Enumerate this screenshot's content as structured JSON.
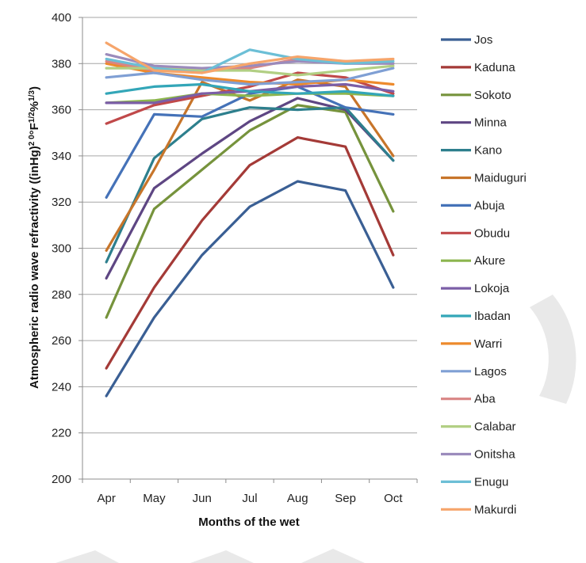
{
  "chart_data": {
    "type": "line",
    "xlabel": "Months of the wet",
    "ylabel": "Atmospheric radio wave refractivity ((inHg)",
    "ylabel_suffix": "°F",
    "ylabel_tail": "%",
    "ylabel_close": ")",
    "ylabel_sup1": "2 0",
    "ylabel_sup2": "1/2",
    "ylabel_sup3": "1/3",
    "categories": [
      "Apr",
      "May",
      "Jun",
      "Jul",
      "Aug",
      "Sep",
      "Oct"
    ],
    "ylim": [
      200,
      400
    ],
    "yticks": [
      200,
      220,
      240,
      260,
      280,
      300,
      320,
      340,
      360,
      380,
      400
    ],
    "grid": true,
    "legend_position": "right",
    "series": [
      {
        "name": "Jos",
        "color": "#3a5f94",
        "values": [
          236,
          270,
          297,
          318,
          329,
          325,
          283
        ]
      },
      {
        "name": "Kaduna",
        "color": "#a43a37",
        "values": [
          248,
          283,
          312,
          336,
          348,
          344,
          297
        ]
      },
      {
        "name": "Sokoto",
        "color": "#76933c",
        "values": [
          270,
          317,
          334,
          351,
          362,
          359,
          316
        ]
      },
      {
        "name": "Minna",
        "color": "#5e4683",
        "values": [
          287,
          326,
          341,
          355,
          365,
          360,
          338
        ]
      },
      {
        "name": "Kano",
        "color": "#2d7f8d",
        "values": [
          294,
          339,
          356,
          361,
          360,
          361,
          338
        ]
      },
      {
        "name": "Maiduguri",
        "color": "#c7752a",
        "values": [
          299,
          334,
          372,
          364,
          373,
          370,
          340
        ]
      },
      {
        "name": "Abuja",
        "color": "#4572b8",
        "values": [
          322,
          358,
          357,
          367,
          370,
          361,
          358
        ]
      },
      {
        "name": "Obudu",
        "color": "#c0494a",
        "values": [
          354,
          362,
          366,
          370,
          376,
          374,
          367
        ]
      },
      {
        "name": "Akure",
        "color": "#8cb54e",
        "values": [
          363,
          364,
          367,
          366,
          367,
          367,
          366
        ]
      },
      {
        "name": "Lokoja",
        "color": "#7b5ea7",
        "values": [
          363,
          363,
          367,
          368,
          370,
          371,
          368
        ]
      },
      {
        "name": "Ibadan",
        "color": "#33a6b8",
        "values": [
          367,
          370,
          371,
          368,
          367,
          368,
          366
        ]
      },
      {
        "name": "Warri",
        "color": "#ed8a2c",
        "values": [
          380,
          376,
          374,
          372,
          371,
          373,
          371
        ]
      },
      {
        "name": "Lagos",
        "color": "#7f9fd4",
        "values": [
          374,
          376,
          373,
          371,
          372,
          373,
          378
        ]
      },
      {
        "name": "Aba",
        "color": "#d98584",
        "values": [
          381,
          377,
          377,
          378,
          382,
          381,
          380
        ]
      },
      {
        "name": "Calabar",
        "color": "#b2cf84",
        "values": [
          378,
          378,
          377,
          377,
          375,
          377,
          379
        ]
      },
      {
        "name": "Onitsha",
        "color": "#9b8bbc",
        "values": [
          384,
          379,
          378,
          379,
          381,
          380,
          380
        ]
      },
      {
        "name": "Enugu",
        "color": "#6cbfd6",
        "values": [
          382,
          378,
          376,
          386,
          382,
          380,
          381
        ]
      },
      {
        "name": "Makurdi",
        "color": "#f6a56b",
        "values": [
          389,
          377,
          376,
          380,
          383,
          381,
          382
        ]
      }
    ]
  }
}
